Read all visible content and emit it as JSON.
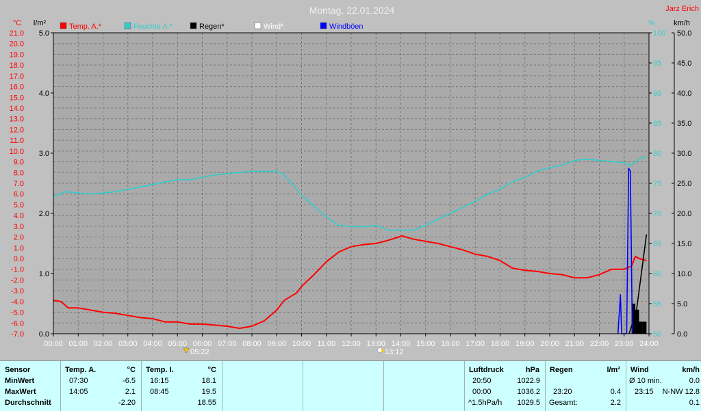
{
  "title": "Montag, 22.01.2024",
  "author": "Jarz Erich",
  "colors": {
    "temp": "#ff0000",
    "humidity": "#33cccc",
    "rain": "#000000",
    "wind": "#ffffff",
    "gusts": "#0000ff",
    "plot_bg": "#aaaaaa",
    "page_bg": "#c0c0c0",
    "table_bg": "#ccffff"
  },
  "legend": [
    {
      "label": "Temp. A.*",
      "color": "#ff0000"
    },
    {
      "label": "Feuchte A.*",
      "color": "#33cccc"
    },
    {
      "label": "Regen*",
      "color": "#000000"
    },
    {
      "label": "Wind*",
      "color": "#ffffff"
    },
    {
      "label": "Windböen",
      "color": "#0000ff"
    }
  ],
  "chart_data": {
    "type": "line",
    "title": "Montag, 22.01.2024",
    "x_ticks": [
      "00:00",
      "01:00",
      "02:00",
      "03:00",
      "04:00",
      "05:00",
      "06:00",
      "07:00",
      "08:00",
      "09:00",
      "10:00",
      "11:00",
      "12:00",
      "13:00",
      "14:00",
      "15:00",
      "16:00",
      "17:00",
      "18:00",
      "19:00",
      "20:00",
      "21:00",
      "22:00",
      "23:00",
      "24:00"
    ],
    "x_range_hours": [
      0,
      24
    ],
    "axes": {
      "temp": {
        "unit": "°C",
        "range": [
          -7.0,
          21.0
        ],
        "ticks": [
          "21.0",
          "20.0",
          "19.0",
          "18.0",
          "17.0",
          "16.0",
          "15.0",
          "14.0",
          "13.0",
          "12.0",
          "11.0",
          "10.0",
          "9.0",
          "8.0",
          "7.0",
          "6.0",
          "5.0",
          "4.0",
          "3.0",
          "2.0",
          "1.0",
          "0.0",
          "-1.0",
          "-2.0",
          "-3.0",
          "-4.0",
          "-5.0",
          "-6.0",
          "-7.0"
        ]
      },
      "rain": {
        "unit": "l/m²",
        "range": [
          0.0,
          5.0
        ],
        "ticks": [
          "5.0",
          "4.0",
          "3.0",
          "2.0",
          "1.0",
          "0.0"
        ]
      },
      "humidity": {
        "unit": "%",
        "range": [
          50,
          100
        ],
        "ticks": [
          "100",
          "95",
          "90",
          "85",
          "80",
          "75",
          "70",
          "65",
          "60",
          "55",
          "50"
        ]
      },
      "wind": {
        "unit": "km/h",
        "range": [
          0.0,
          50.0
        ],
        "ticks": [
          "50.0",
          "45.0",
          "40.0",
          "35.0",
          "30.0",
          "25.0",
          "20.0",
          "15.0",
          "10.0",
          "5.0",
          "0.0"
        ]
      }
    },
    "grid": true,
    "series": [
      {
        "name": "Temp. A.*",
        "axis": "temp",
        "points": [
          [
            0,
            -3.9
          ],
          [
            0.3,
            -4.0
          ],
          [
            0.6,
            -4.6
          ],
          [
            1.0,
            -4.6
          ],
          [
            1.5,
            -4.8
          ],
          [
            2.0,
            -5.0
          ],
          [
            2.5,
            -5.1
          ],
          [
            3.0,
            -5.3
          ],
          [
            3.5,
            -5.5
          ],
          [
            4.0,
            -5.6
          ],
          [
            4.5,
            -5.9
          ],
          [
            5.0,
            -5.9
          ],
          [
            5.5,
            -6.1
          ],
          [
            6.0,
            -6.1
          ],
          [
            6.5,
            -6.2
          ],
          [
            7.0,
            -6.3
          ],
          [
            7.5,
            -6.5
          ],
          [
            8.0,
            -6.3
          ],
          [
            8.5,
            -5.8
          ],
          [
            9.0,
            -4.8
          ],
          [
            9.3,
            -3.9
          ],
          [
            9.8,
            -3.2
          ],
          [
            10.0,
            -2.6
          ],
          [
            10.5,
            -1.5
          ],
          [
            11.0,
            -0.3
          ],
          [
            11.5,
            0.6
          ],
          [
            12.0,
            1.1
          ],
          [
            12.5,
            1.3
          ],
          [
            13.0,
            1.4
          ],
          [
            13.5,
            1.7
          ],
          [
            14.05,
            2.1
          ],
          [
            14.5,
            1.8
          ],
          [
            15.0,
            1.6
          ],
          [
            15.5,
            1.4
          ],
          [
            16.0,
            1.1
          ],
          [
            16.5,
            0.8
          ],
          [
            17.0,
            0.4
          ],
          [
            17.5,
            0.2
          ],
          [
            18.0,
            -0.2
          ],
          [
            18.5,
            -0.9
          ],
          [
            19.0,
            -1.1
          ],
          [
            19.5,
            -1.2
          ],
          [
            20.0,
            -1.4
          ],
          [
            20.5,
            -1.5
          ],
          [
            21.0,
            -1.8
          ],
          [
            21.5,
            -1.8
          ],
          [
            22.0,
            -1.5
          ],
          [
            22.5,
            -1.0
          ],
          [
            23.0,
            -1.0
          ],
          [
            23.3,
            -0.7
          ],
          [
            23.45,
            0.2
          ],
          [
            23.6,
            0.0
          ],
          [
            23.9,
            -0.2
          ]
        ]
      },
      {
        "name": "Feuchte A.*",
        "axis": "humidity",
        "points": [
          [
            0,
            72.8
          ],
          [
            0.5,
            73.6
          ],
          [
            1.0,
            73.4
          ],
          [
            1.5,
            73.2
          ],
          [
            2.0,
            73.4
          ],
          [
            2.5,
            73.6
          ],
          [
            3.0,
            74.0
          ],
          [
            3.5,
            74.4
          ],
          [
            4.0,
            74.8
          ],
          [
            4.5,
            75.2
          ],
          [
            5.0,
            75.6
          ],
          [
            5.5,
            75.6
          ],
          [
            6.0,
            76.0
          ],
          [
            6.5,
            76.4
          ],
          [
            7.0,
            76.6
          ],
          [
            7.5,
            76.8
          ],
          [
            8.0,
            77.0
          ],
          [
            8.5,
            77.0
          ],
          [
            9.0,
            77.0
          ],
          [
            9.3,
            76.4
          ],
          [
            9.6,
            75.0
          ],
          [
            10.0,
            73.0
          ],
          [
            10.5,
            71.2
          ],
          [
            11.0,
            69.4
          ],
          [
            11.5,
            68.0
          ],
          [
            12.0,
            67.8
          ],
          [
            12.5,
            67.8
          ],
          [
            13.0,
            68.0
          ],
          [
            13.5,
            67.2
          ],
          [
            14.0,
            67.2
          ],
          [
            14.5,
            67.2
          ],
          [
            15.0,
            68.0
          ],
          [
            15.5,
            69.0
          ],
          [
            16.0,
            70.0
          ],
          [
            16.5,
            71.0
          ],
          [
            17.0,
            72.0
          ],
          [
            17.5,
            73.2
          ],
          [
            18.0,
            74.0
          ],
          [
            18.5,
            75.2
          ],
          [
            19.0,
            76.0
          ],
          [
            19.5,
            77.0
          ],
          [
            20.0,
            77.6
          ],
          [
            20.5,
            78.0
          ],
          [
            21.0,
            78.8
          ],
          [
            21.5,
            79.0
          ],
          [
            22.0,
            78.8
          ],
          [
            22.5,
            78.6
          ],
          [
            23.0,
            78.4
          ],
          [
            23.3,
            78.0
          ],
          [
            23.6,
            79.0
          ],
          [
            23.9,
            79.5
          ]
        ]
      },
      {
        "name": "Regen*",
        "axis": "rain",
        "points": [
          [
            23.2,
            0.0
          ],
          [
            23.5,
            0.4
          ],
          [
            23.9,
            1.65
          ]
        ]
      },
      {
        "name": "Windböen",
        "axis": "wind",
        "points": [
          [
            22.75,
            0.0
          ],
          [
            22.85,
            6.5
          ],
          [
            22.9,
            0.0
          ],
          [
            23.1,
            0.0
          ],
          [
            23.18,
            27.5
          ],
          [
            23.25,
            27.0
          ],
          [
            23.33,
            0.0
          ]
        ]
      }
    ],
    "sunrise_marker": {
      "time": "05:22",
      "hour": 5.37
    },
    "noon_marker": {
      "time": "13:12",
      "hour": 13.2
    }
  },
  "table": {
    "sensor": {
      "header": "Sensor",
      "rows": [
        "MinWert",
        "MaxWert",
        "Durchschnitt"
      ]
    },
    "temp_a": {
      "header": "Temp. A.",
      "unit": "°C",
      "rows": [
        [
          "07:30",
          "-6.5"
        ],
        [
          "14:05",
          "2.1"
        ],
        [
          "",
          "-2.20"
        ]
      ]
    },
    "temp_i": {
      "header": "Temp. I.",
      "unit": "°C",
      "rows": [
        [
          "16:15",
          "18.1"
        ],
        [
          "08:45",
          "19.5"
        ],
        [
          "",
          "18.55"
        ]
      ]
    },
    "pressure": {
      "header": "Luftdruck",
      "unit": "hPa",
      "rows": [
        [
          "20:50",
          "1022.9"
        ],
        [
          "00:00",
          "1036.2"
        ],
        [
          "^1.5hPa/h",
          "1029.5"
        ]
      ]
    },
    "rain": {
      "header": "Regen",
      "unit": "l/m²",
      "rows": [
        [
          "",
          ""
        ],
        [
          "23:20",
          "0.4"
        ],
        [
          "Gesamt:",
          "2.2"
        ]
      ]
    },
    "wind": {
      "header": "Wind",
      "unit": "km/h",
      "rows": [
        [
          "Ø 10 min.",
          "0.0"
        ],
        [
          "23:15",
          "N-NW 12.8"
        ],
        [
          "",
          "0.1"
        ]
      ]
    }
  }
}
